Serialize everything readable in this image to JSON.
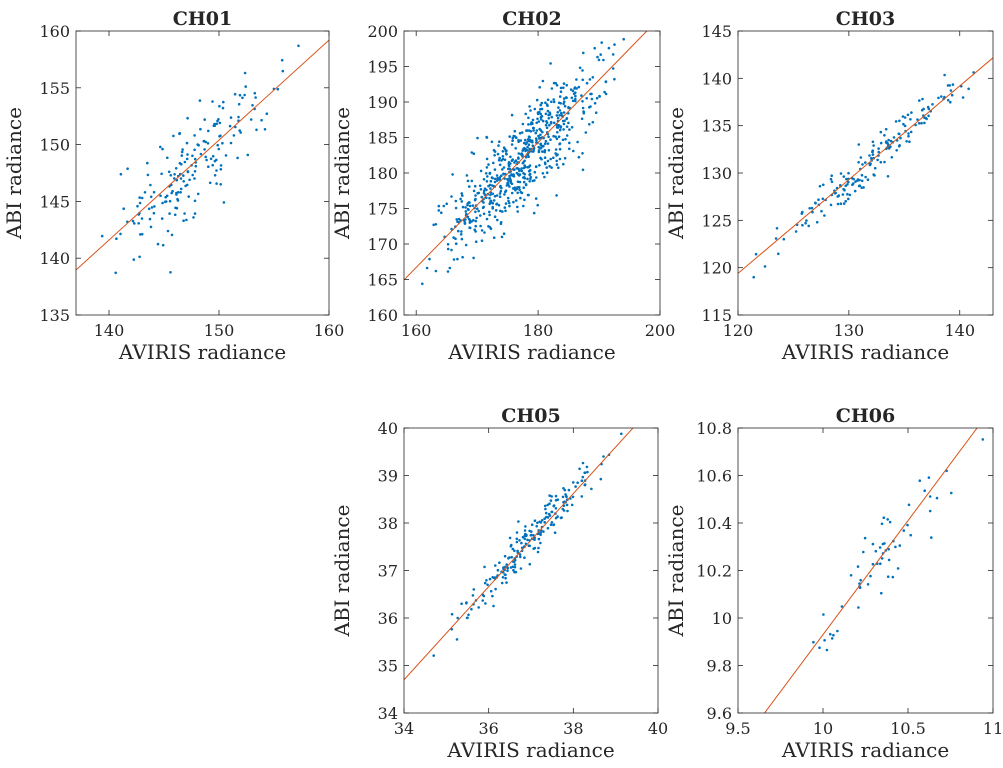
{
  "figure": {
    "colors": {
      "points": "#0072BD",
      "fit_line": "#D95319",
      "axes": "#262626"
    }
  },
  "chart_data": [
    {
      "type": "scatter",
      "title": "CH01",
      "xlabel": "AVIRIS radiance",
      "ylabel": "ABI radiance",
      "xlim": [
        137,
        160
      ],
      "ylim": [
        135,
        160
      ],
      "xticks": [
        140,
        150,
        160
      ],
      "yticks": [
        135,
        140,
        145,
        150,
        155,
        160
      ],
      "grid": false,
      "fit_line": {
        "slope": 0.88,
        "intercept": 18.4
      },
      "point_cloud": {
        "count": 190,
        "x_range": [
          137.5,
          157.5
        ],
        "y_noise_sd": 2.3
      }
    },
    {
      "type": "scatter",
      "title": "CH02",
      "xlabel": "AVIRIS radiance",
      "ylabel": "ABI radiance",
      "xlim": [
        158,
        200
      ],
      "ylim": [
        160,
        200
      ],
      "xticks": [
        160,
        180,
        200
      ],
      "yticks": [
        160,
        165,
        170,
        175,
        180,
        185,
        190,
        195,
        200
      ],
      "grid": false,
      "fit_line": {
        "slope": 0.88,
        "intercept": 25.9
      },
      "point_cloud": {
        "count": 650,
        "x_range": [
          159,
          196
        ],
        "y_noise_sd": 3.2
      }
    },
    {
      "type": "scatter",
      "title": "CH03",
      "xlabel": "AVIRIS radiance",
      "ylabel": "ABI radiance",
      "xlim": [
        120,
        143
      ],
      "ylim": [
        115,
        145
      ],
      "xticks": [
        120,
        130,
        140
      ],
      "yticks": [
        115,
        120,
        125,
        130,
        135,
        140,
        145
      ],
      "grid": false,
      "fit_line": {
        "slope": 0.99,
        "intercept": 0.6
      },
      "point_cloud": {
        "count": 180,
        "x_range": [
          120,
          143
        ],
        "y_noise_sd": 1.1
      }
    },
    {
      "type": "scatter",
      "title": "CH05",
      "xlabel": "AVIRIS radiance",
      "ylabel": "ABI radiance",
      "xlim": [
        34,
        40
      ],
      "ylim": [
        34,
        40
      ],
      "xticks": [
        34,
        36,
        38,
        40
      ],
      "yticks": [
        34,
        35,
        36,
        37,
        38,
        39,
        40
      ],
      "grid": false,
      "fit_line": {
        "slope": 0.98,
        "intercept": 1.38
      },
      "point_cloud": {
        "count": 210,
        "x_range": [
          34.3,
          39.5
        ],
        "y_noise_sd": 0.2
      }
    },
    {
      "type": "scatter",
      "title": "CH06",
      "xlabel": "AVIRIS radiance",
      "ylabel": "ABI radiance",
      "xlim": [
        9.5,
        11
      ],
      "ylim": [
        9.6,
        10.8
      ],
      "xticks": [
        9.5,
        10,
        10.5,
        11
      ],
      "xtick_labels": [
        "9.5",
        "10",
        "10.5",
        "11"
      ],
      "yticks": [
        9.6,
        9.8,
        10,
        10.2,
        10.4,
        10.6,
        10.8
      ],
      "ytick_labels": [
        "9.6",
        "9.8",
        "10",
        "10.2",
        "10.4",
        "10.6",
        "10.8"
      ],
      "grid": false,
      "fit_line": {
        "slope": 0.96,
        "intercept": 0.33
      },
      "point_cloud": {
        "count": 60,
        "x_range": [
          9.72,
          10.97
        ],
        "y_noise_sd": 0.08
      }
    }
  ]
}
